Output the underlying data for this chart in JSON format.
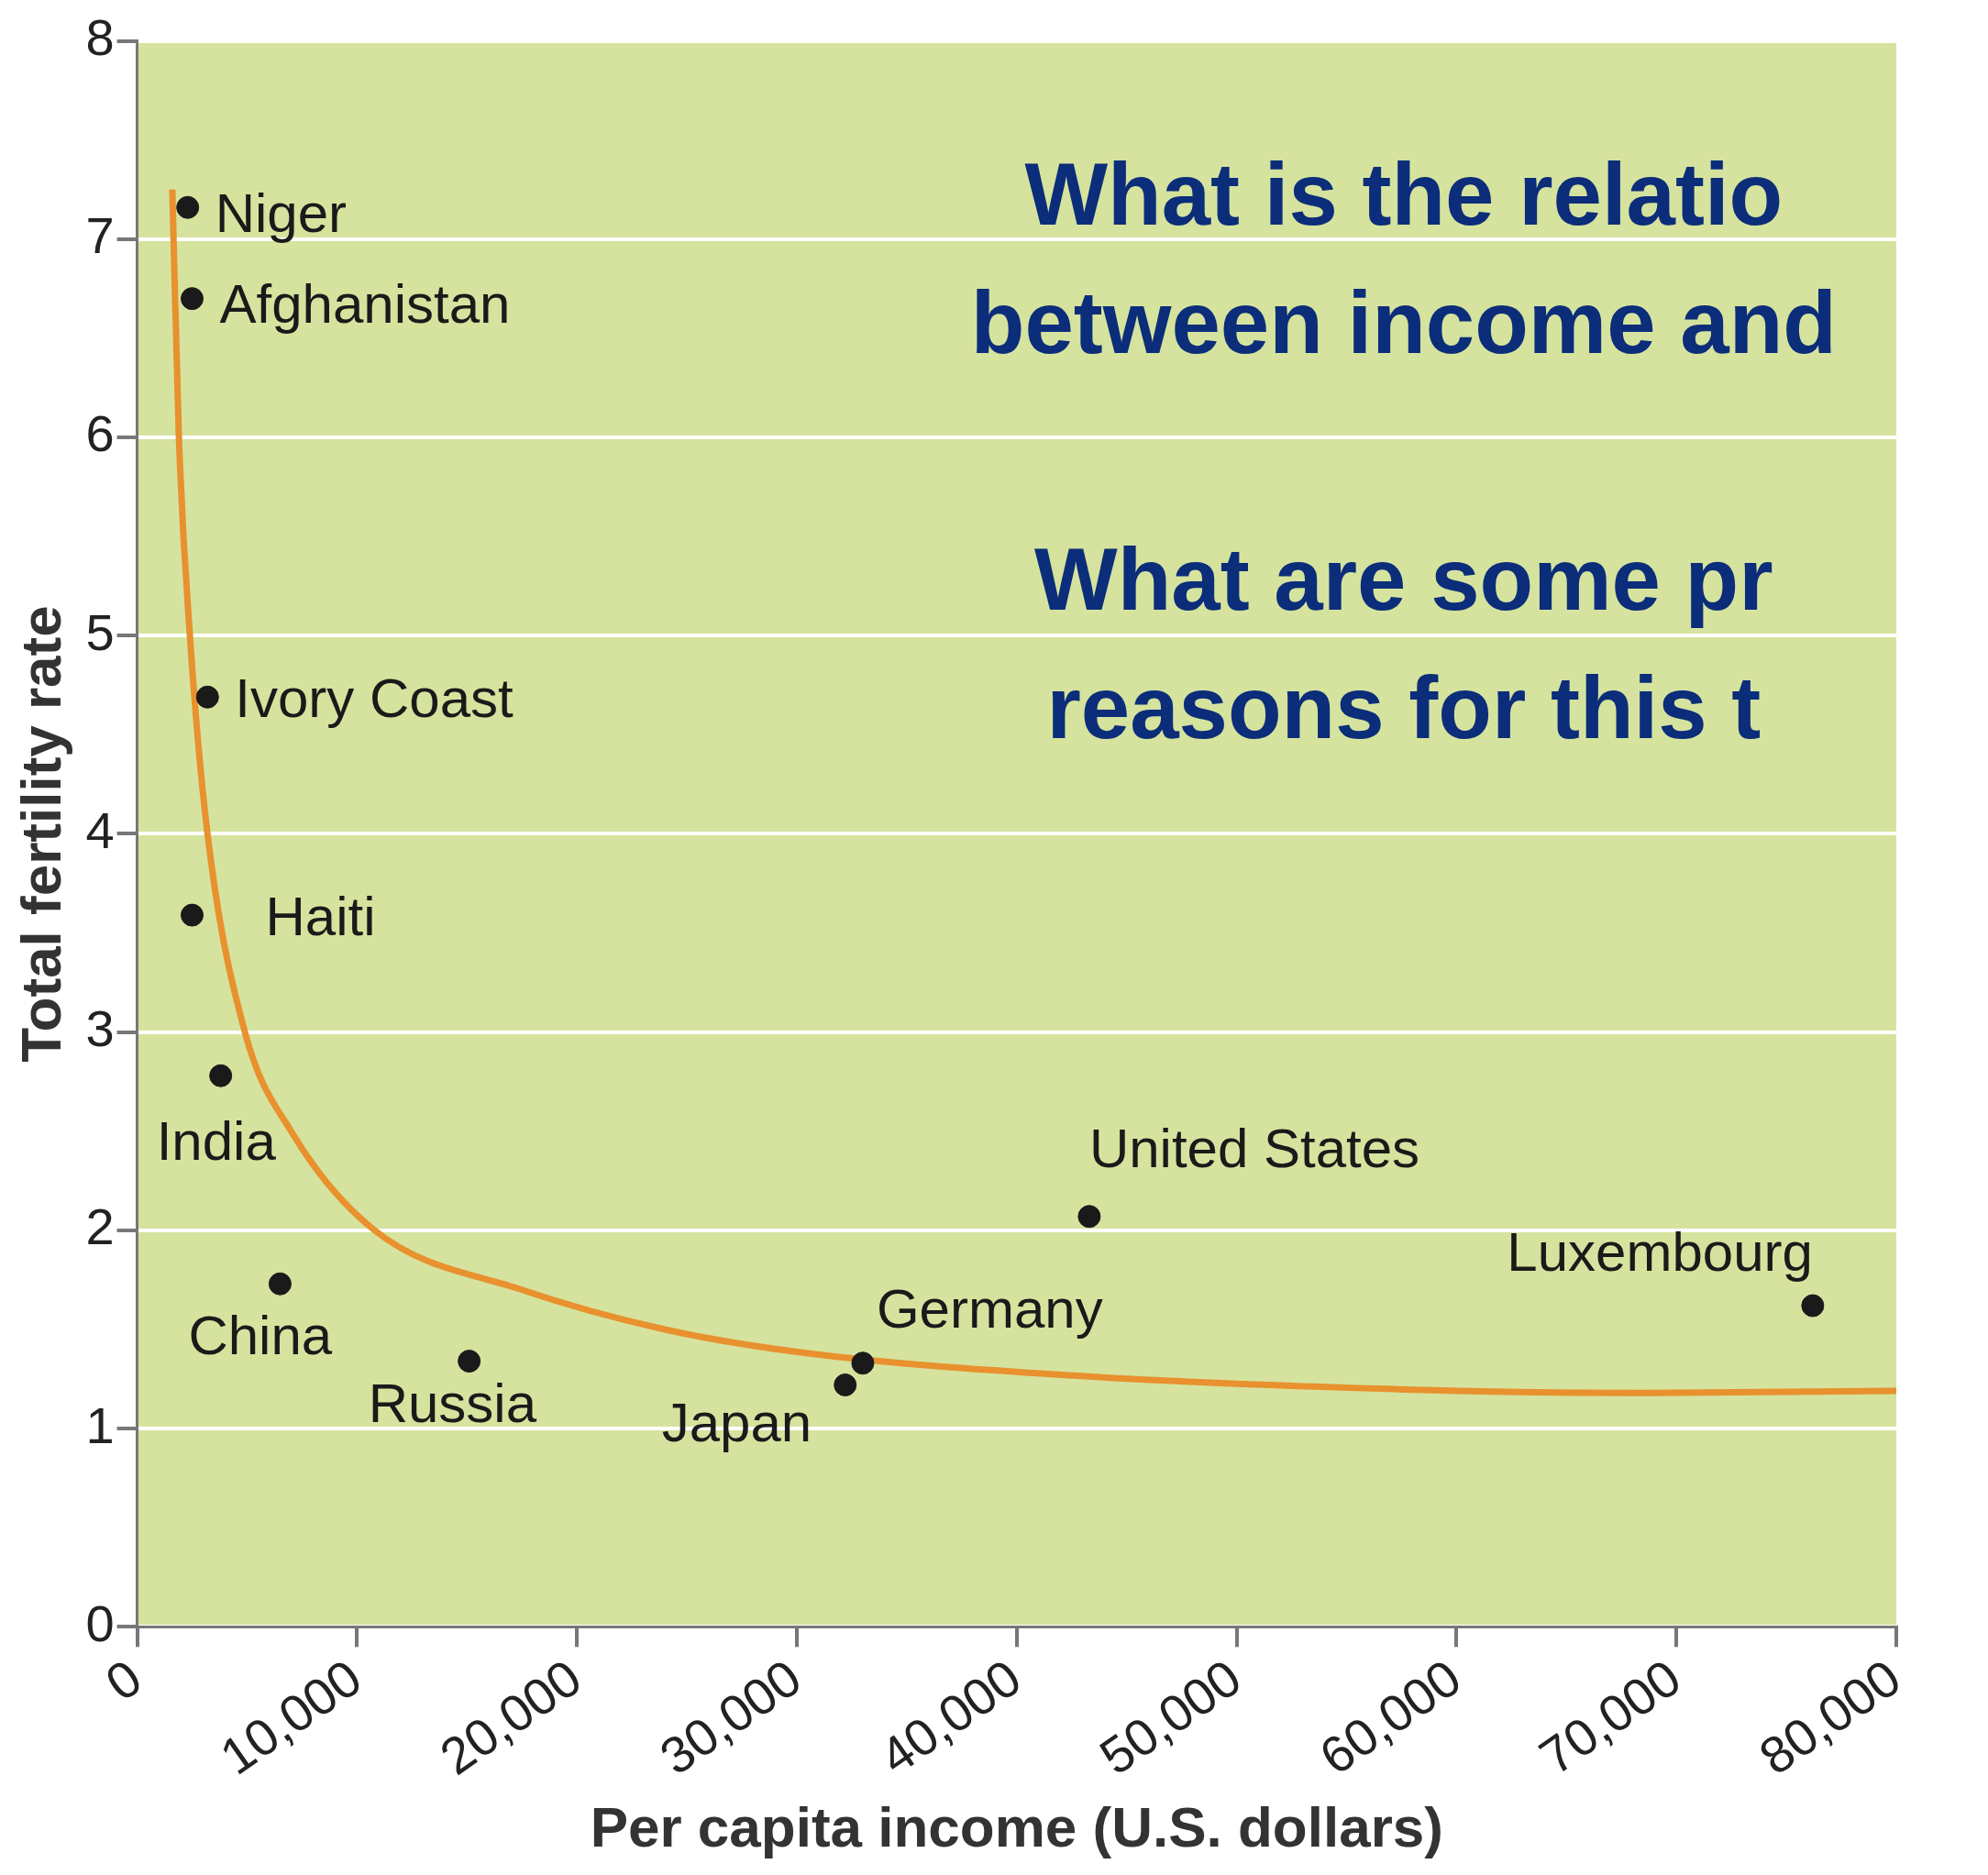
{
  "chart_data": {
    "type": "scatter",
    "xlabel": "Per capita income (U.S. dollars)",
    "ylabel": "Total fertility rate",
    "xlim": [
      0,
      80000
    ],
    "xticks": [
      {
        "value": 0,
        "label": "0"
      },
      {
        "value": 10000,
        "label": "10,000"
      },
      {
        "value": 20000,
        "label": "20,000"
      },
      {
        "value": 30000,
        "label": "30,000"
      },
      {
        "value": 40000,
        "label": "40,000"
      },
      {
        "value": 50000,
        "label": "50,000"
      },
      {
        "value": 60000,
        "label": "60,000"
      },
      {
        "value": 70000,
        "label": "70,000"
      },
      {
        "value": 80000,
        "label": "80,000"
      }
    ],
    "ylim": [
      0,
      8
    ],
    "yticks": [
      0,
      1,
      2,
      3,
      4,
      5,
      6,
      7,
      8
    ],
    "grid": "y",
    "legend": false,
    "marker": "circle",
    "series": [
      {
        "color": "#1a1a1a",
        "x": [
          2300,
          2500,
          3200,
          2500,
          3800,
          6500,
          15100,
          32200,
          33000,
          43300,
          76200
        ],
        "values": [
          7.16,
          6.7,
          4.69,
          3.59,
          2.78,
          1.73,
          1.34,
          1.22,
          1.33,
          2.07,
          1.62
        ]
      },
      {
        "type": "line",
        "color": "#e8912e",
        "marker": "none",
        "x": [
          1600,
          1900,
          2400,
          3200,
          4900,
          7000,
          10800,
          17500,
          24000,
          30500,
          42200,
          56900,
          68600,
          80000
        ],
        "values": [
          7.25,
          6,
          5,
          4,
          3,
          2.5,
          2,
          1.7,
          1.5,
          1.38,
          1.27,
          1.2,
          1.18,
          1.19
        ]
      }
    ],
    "annotations": [
      {
        "text": "Niger",
        "x": 2300,
        "y": 7.16
      },
      {
        "text": "Afghanistan",
        "x": 2500,
        "y": 6.7
      },
      {
        "text": "Ivory Coast",
        "x": 3200,
        "y": 4.69
      },
      {
        "text": "Haiti",
        "x": 2500,
        "y": 3.59
      },
      {
        "text": "India",
        "x": 3800,
        "y": 2.78
      },
      {
        "text": "China",
        "x": 6500,
        "y": 1.73
      },
      {
        "text": "Russia",
        "x": 15100,
        "y": 1.34
      },
      {
        "text": "Japan",
        "x": 32200,
        "y": 1.22
      },
      {
        "text": "Germany",
        "x": 33000,
        "y": 1.33
      },
      {
        "text": "United States",
        "x": 43300,
        "y": 2.07
      },
      {
        "text": "Luxembourg",
        "x": 76200,
        "y": 1.62
      },
      "What is the relatio",
      "between income and",
      "What are some pr",
      "reasons for this t"
    ]
  }
}
